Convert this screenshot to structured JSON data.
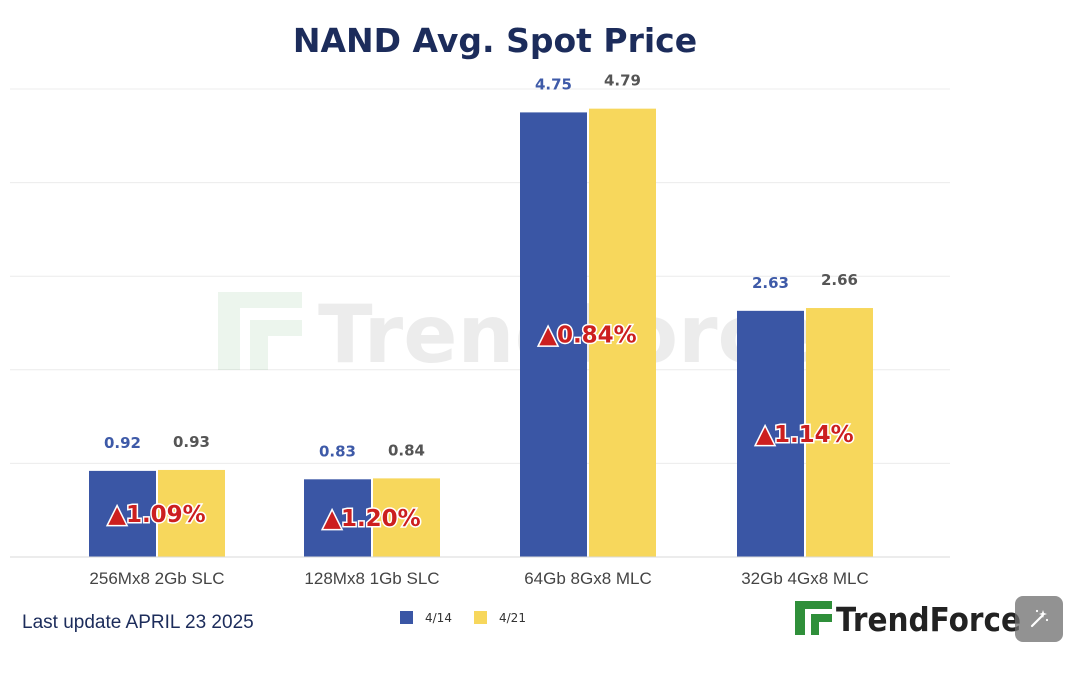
{
  "chart_data": {
    "type": "bar",
    "title": "NAND Avg. Spot Price",
    "categories": [
      "256Mx8 2Gb SLC",
      "128Mx8 1Gb SLC",
      "64Gb 8Gx8 MLC",
      "32Gb 4Gx8 MLC"
    ],
    "series": [
      {
        "name": "4/14",
        "values": [
          0.92,
          0.83,
          4.75,
          2.63
        ],
        "color": "#3a56a5",
        "label_color": "#3e5aa8"
      },
      {
        "name": "4/21",
        "values": [
          0.93,
          0.84,
          4.79,
          2.66
        ],
        "color": "#f7d75c",
        "label_color": "#555555"
      }
    ],
    "value_labels": [
      [
        "0.92",
        "0.83",
        "4.75",
        "2.63"
      ],
      [
        "0.93",
        "0.84",
        "4.79",
        "2.66"
      ]
    ],
    "change_labels": [
      "▲1.09%",
      "▲1.20%",
      "▲0.84%",
      "▲1.14%"
    ],
    "change_color": "#cc1f1f",
    "ylim": [
      0,
      5
    ],
    "grid": true,
    "legend_position": "bottom-center",
    "xlabel": "",
    "ylabel": ""
  },
  "footer": {
    "last_update": "Last update APRIL 23  2025"
  },
  "brand": {
    "name": "TrendForce",
    "watermark": "TrendForce",
    "accent_color": "#2f8f3a"
  },
  "overlay": {
    "icon": "magic-wand-icon"
  }
}
